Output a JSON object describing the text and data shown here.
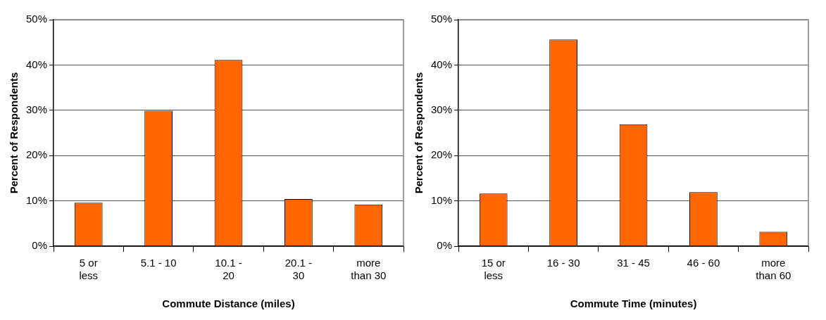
{
  "chart_data": [
    {
      "type": "bar",
      "categories": [
        "5 or less",
        "5.1 - 10",
        "10.1 - 20",
        "20.1 - 30",
        "more than 30"
      ],
      "values": [
        9.6,
        29.9,
        41.1,
        10.4,
        9.2
      ],
      "color": "#ff6600",
      "xlabel": "Commute Distance (miles)",
      "ylabel": "Percent of Respondents",
      "ylim": [
        0,
        50
      ],
      "yticks": [
        {
          "value": 0,
          "label": "0%"
        },
        {
          "value": 10,
          "label": "10%"
        },
        {
          "value": 20,
          "label": "20%"
        },
        {
          "value": 30,
          "label": "30%"
        },
        {
          "value": 40,
          "label": "40%"
        },
        {
          "value": 50,
          "label": "50%"
        }
      ],
      "grid": "y",
      "legend": false
    },
    {
      "type": "bar",
      "categories": [
        "15 or less",
        "16 - 30",
        "31 - 45",
        "46 - 60",
        "more than 60"
      ],
      "values": [
        11.6,
        45.6,
        26.9,
        11.9,
        3.2
      ],
      "color": "#ff6600",
      "xlabel": "Commute Time (minutes)",
      "ylabel": "Percent of Respondents",
      "ylim": [
        0,
        50
      ],
      "yticks": [
        {
          "value": 0,
          "label": "0%"
        },
        {
          "value": 10,
          "label": "10%"
        },
        {
          "value": 20,
          "label": "20%"
        },
        {
          "value": 30,
          "label": "30%"
        },
        {
          "value": 40,
          "label": "40%"
        },
        {
          "value": 50,
          "label": "50%"
        }
      ],
      "grid": "y",
      "legend": false
    }
  ]
}
